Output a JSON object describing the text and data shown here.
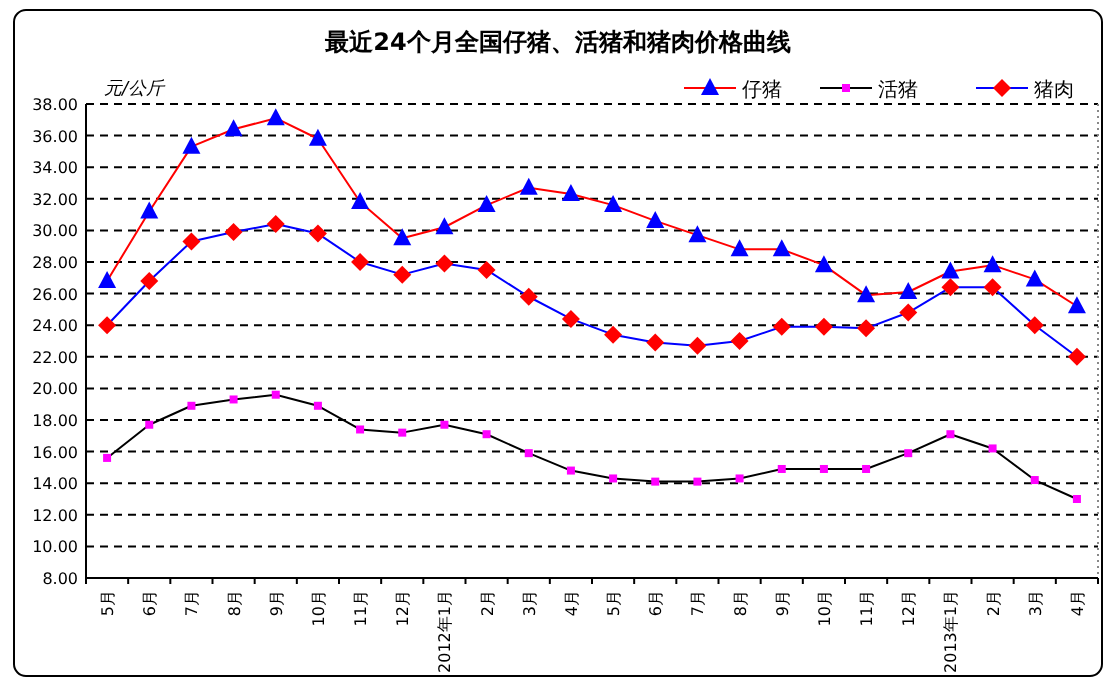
{
  "chart_data": {
    "type": "line",
    "title": "最近24个月全国仔猪、活猪和猪肉价格曲线",
    "ylabel": "元/公斤",
    "categories": [
      "5月",
      "6月",
      "7月",
      "8月",
      "9月",
      "10月",
      "11月",
      "12月",
      "2012年1月",
      "2月",
      "3月",
      "4月",
      "5月",
      "6月",
      "7月",
      "8月",
      "9月",
      "10月",
      "11月",
      "12月",
      "2013年1月",
      "2月",
      "3月",
      "4月"
    ],
    "series": [
      {
        "name": "仔猪",
        "color": "#ff0000",
        "colors": [
          "#0000ff",
          "#0000ff",
          "#0000ff",
          "#0000ff",
          "#0000ff",
          "#0000ff",
          "#0000ff",
          "#0000ff",
          "#0000ff",
          "#0000ff",
          "#0000ff",
          "#0000ff",
          "#0000ff",
          "#0000ff",
          "#0000ff",
          "#0000ff",
          "#0000ff",
          "#0000ff",
          "#0000ff",
          "#0000ff",
          "#0000ff",
          "#0000ff",
          "#0000ff",
          "#0000ff"
        ],
        "marker": "triangle",
        "values": [
          26.8,
          31.2,
          35.3,
          36.4,
          37.1,
          35.8,
          31.8,
          29.5,
          30.2,
          31.6,
          32.7,
          32.3,
          31.6,
          30.6,
          29.7,
          28.8,
          28.8,
          27.8,
          25.9,
          26.1,
          27.4,
          27.8,
          26.9,
          25.2
        ]
      },
      {
        "name": "活猪",
        "color": "#000000",
        "colors": [
          "#ff00ff",
          "#ff00ff",
          "#ff00ff",
          "#ff00ff",
          "#ff00ff",
          "#ff00ff",
          "#ff00ff",
          "#ff00ff",
          "#ff00ff",
          "#ff00ff",
          "#ff00ff",
          "#ff00ff",
          "#ff00ff",
          "#ff00ff",
          "#ff00ff",
          "#ff00ff",
          "#ff00ff",
          "#ff00ff",
          "#ff00ff",
          "#ff00ff",
          "#ff00ff",
          "#ff00ff",
          "#ff00ff",
          "#ff00ff"
        ],
        "marker": "square",
        "values": [
          15.6,
          17.7,
          18.9,
          19.3,
          19.6,
          18.9,
          17.4,
          17.2,
          17.7,
          17.1,
          15.9,
          14.8,
          14.3,
          14.1,
          14.1,
          14.3,
          14.9,
          14.9,
          14.9,
          15.9,
          17.1,
          16.2,
          14.2,
          13.0
        ]
      },
      {
        "name": "猪肉",
        "color": "#0000ff",
        "colors": [
          "#ff0000",
          "#ff0000",
          "#ff0000",
          "#ff0000",
          "#ff0000",
          "#ff0000",
          "#ff0000",
          "#ff0000",
          "#ff0000",
          "#ff0000",
          "#ff0000",
          "#ff0000",
          "#ff0000",
          "#ff0000",
          "#ff0000",
          "#ff0000",
          "#ff0000",
          "#ff0000",
          "#ff0000",
          "#ff0000",
          "#ff0000",
          "#ff0000",
          "#ff0000",
          "#ff0000"
        ],
        "marker": "diamond",
        "values": [
          24.0,
          26.8,
          29.3,
          29.9,
          30.4,
          29.8,
          28.0,
          27.2,
          27.9,
          27.5,
          25.8,
          24.4,
          23.4,
          22.9,
          22.7,
          23.0,
          23.9,
          23.9,
          23.8,
          24.8,
          26.4,
          26.4,
          24.0,
          22.0
        ]
      }
    ],
    "ylim": [
      8,
      38
    ],
    "yticks": [
      {
        "value": 8,
        "label": "8.00"
      },
      {
        "value": 10,
        "label": "10.00"
      },
      {
        "value": 12,
        "label": "12.00"
      },
      {
        "value": 14,
        "label": "14.00"
      },
      {
        "value": 16,
        "label": "16.00"
      },
      {
        "value": 18,
        "label": "18.00"
      },
      {
        "value": 20,
        "label": "20.00"
      },
      {
        "value": 22,
        "label": "22.00"
      },
      {
        "value": 24,
        "label": "24.00"
      },
      {
        "value": 26,
        "label": "26.00"
      },
      {
        "value": 28,
        "label": "28.00"
      },
      {
        "value": 30,
        "label": "30.00"
      },
      {
        "value": 32,
        "label": "32.00"
      },
      {
        "value": 34,
        "label": "34.00"
      },
      {
        "value": 36,
        "label": "36.00"
      },
      {
        "value": 38,
        "label": "38.00"
      }
    ],
    "grid": "y",
    "legend": "top right",
    "line_style": "solid"
  }
}
